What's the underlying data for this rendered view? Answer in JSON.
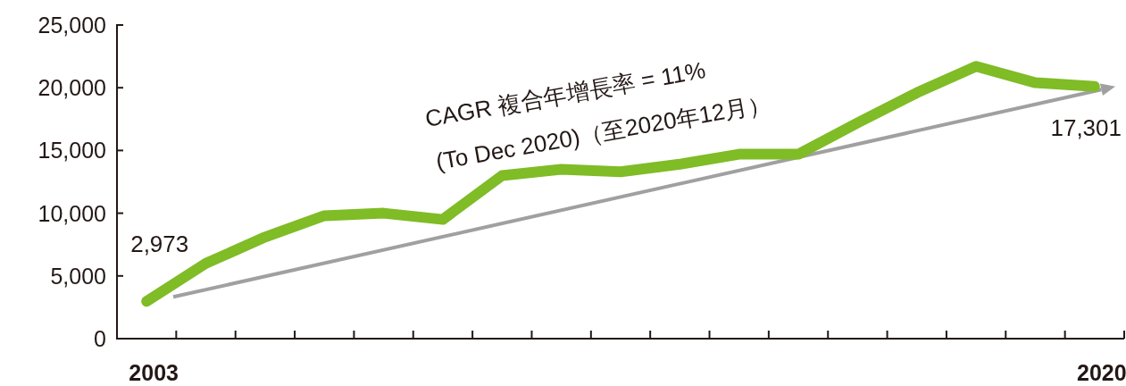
{
  "chart_data": {
    "type": "line",
    "categories": [
      "2003",
      null,
      null,
      null,
      null,
      null,
      null,
      null,
      null,
      null,
      null,
      null,
      null,
      null,
      null,
      null,
      "2020"
    ],
    "series": [
      {
        "color": "#7fbc26",
        "values": [
          2973,
          6000,
          8100,
          9800,
          10000,
          9500,
          13000,
          13500,
          13300,
          13900,
          14700,
          14700,
          17200,
          19600,
          21700,
          20400,
          20100
        ]
      }
    ],
    "ylim": [
      0,
      25000
    ],
    "yticks": [
      0,
      {
        "value": 5000,
        "label": "5,000"
      },
      {
        "value": 10000,
        "label": "10,000"
      },
      {
        "value": 15000,
        "label": "15,000"
      },
      {
        "value": 20000,
        "label": "20,000"
      },
      {
        "value": 25000,
        "label": "25,000"
      }
    ],
    "annotations": [
      "CAGR 複合年增長率 = 11%",
      "(To Dec 2020)（至2020年12月）",
      {
        "text": "2,973",
        "x": "2003",
        "y": 2973
      },
      "17,301"
    ]
  }
}
